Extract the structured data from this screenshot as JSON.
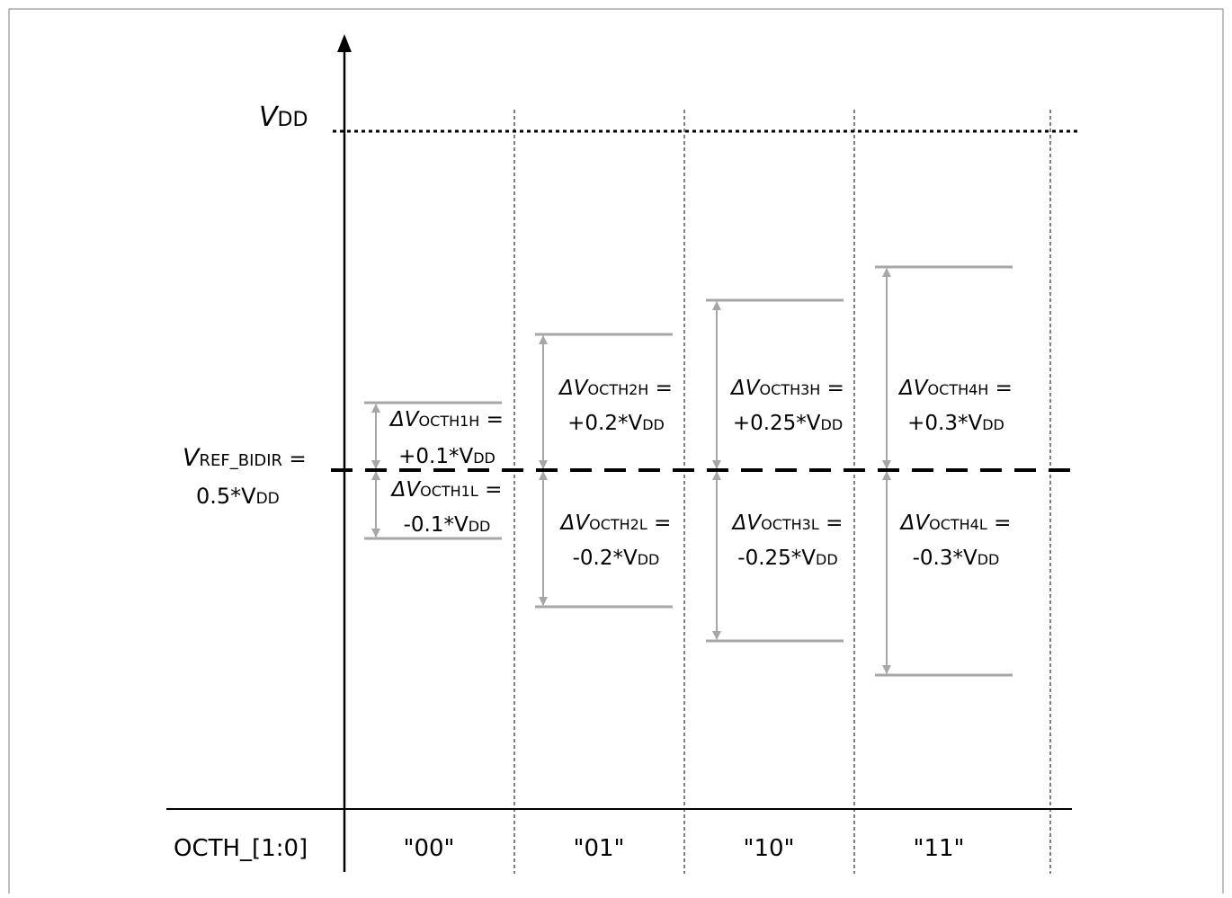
{
  "vdd": {
    "main": "V",
    "sub": "DD"
  },
  "vref": {
    "main": "V",
    "sub": "REF_BIDIR",
    "eq": " =",
    "line2": "0.5*V",
    "line2_sub": "DD"
  },
  "xaxis": {
    "name": "OCTH_[1:0]",
    "codes": [
      "\"00\"",
      "\"01\"",
      "\"10\"",
      "\"11\""
    ]
  },
  "thresholds": [
    {
      "high": {
        "delta": "ΔV",
        "sub": "OCTH1H",
        "eq": " =",
        "value": "+0.1*V",
        "value_sub": "DD",
        "fraction": 0.1
      },
      "low": {
        "delta": "ΔV",
        "sub": "OCTH1L",
        "eq": " =",
        "value": "-0.1*V",
        "value_sub": "DD",
        "fraction": -0.1
      }
    },
    {
      "high": {
        "delta": "ΔV",
        "sub": "OCTH2H",
        "eq": " =",
        "value": "+0.2*V",
        "value_sub": "DD",
        "fraction": 0.2
      },
      "low": {
        "delta": "ΔV",
        "sub": "OCTH2L",
        "eq": " =",
        "value": "-0.2*V",
        "value_sub": "DD",
        "fraction": -0.2
      }
    },
    {
      "high": {
        "delta": "ΔV",
        "sub": "OCTH3H",
        "eq": " =",
        "value": "+0.25*V",
        "value_sub": "DD",
        "fraction": 0.25
      },
      "low": {
        "delta": "ΔV",
        "sub": "OCTH3L",
        "eq": " =",
        "value": "-0.25*V",
        "value_sub": "DD",
        "fraction": -0.25
      }
    },
    {
      "high": {
        "delta": "ΔV",
        "sub": "OCTH4H",
        "eq": " =",
        "value": "+0.3*V",
        "value_sub": "DD",
        "fraction": 0.3
      },
      "low": {
        "delta": "ΔV",
        "sub": "OCTH4L",
        "eq": " =",
        "value": "-0.3*V",
        "value_sub": "DD",
        "fraction": -0.3
      }
    }
  ],
  "colors": {
    "threshold": "#a6a6a6",
    "axis": "#000000",
    "frame": "#7f7f7f"
  }
}
